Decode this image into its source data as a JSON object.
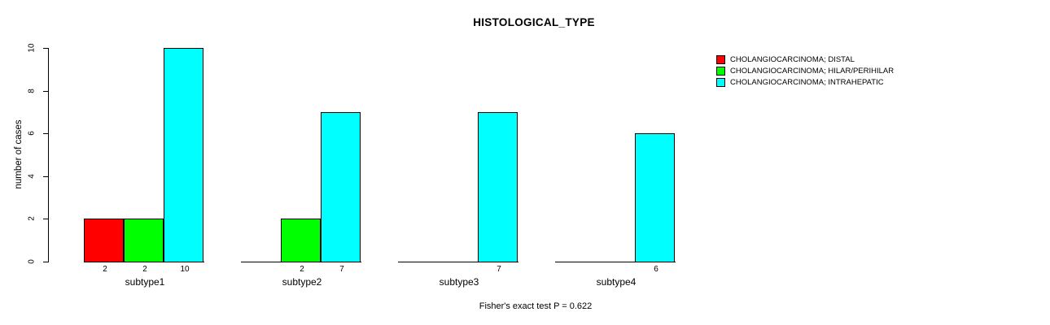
{
  "chart_data": {
    "type": "bar",
    "title": "HISTOLOGICAL_TYPE",
    "ylabel": "number of cases",
    "xlabel": "",
    "ylim": [
      0,
      10
    ],
    "yticks": [
      0,
      2,
      4,
      6,
      8,
      10
    ],
    "grid": false,
    "legend_position": "top-right",
    "categories": [
      "subtype1",
      "subtype2",
      "subtype3",
      "subtype4"
    ],
    "series": [
      {
        "name": "CHOLANGIOCARCINOMA; DISTAL",
        "color": "#ff0000",
        "values": [
          2,
          0,
          0,
          0
        ]
      },
      {
        "name": "CHOLANGIOCARCINOMA; HILAR/PERIHILAR",
        "color": "#00ff00",
        "values": [
          2,
          2,
          0,
          0
        ]
      },
      {
        "name": "CHOLANGIOCARCINOMA; INTRAHEPATIC",
        "color": "#00ffff",
        "values": [
          10,
          7,
          7,
          6
        ]
      }
    ],
    "bar_value_labels": [
      [
        2,
        2,
        10
      ],
      [
        2,
        7
      ],
      [
        7
      ],
      [
        6
      ]
    ]
  },
  "footer": "Fisher's exact test P = 0.622"
}
